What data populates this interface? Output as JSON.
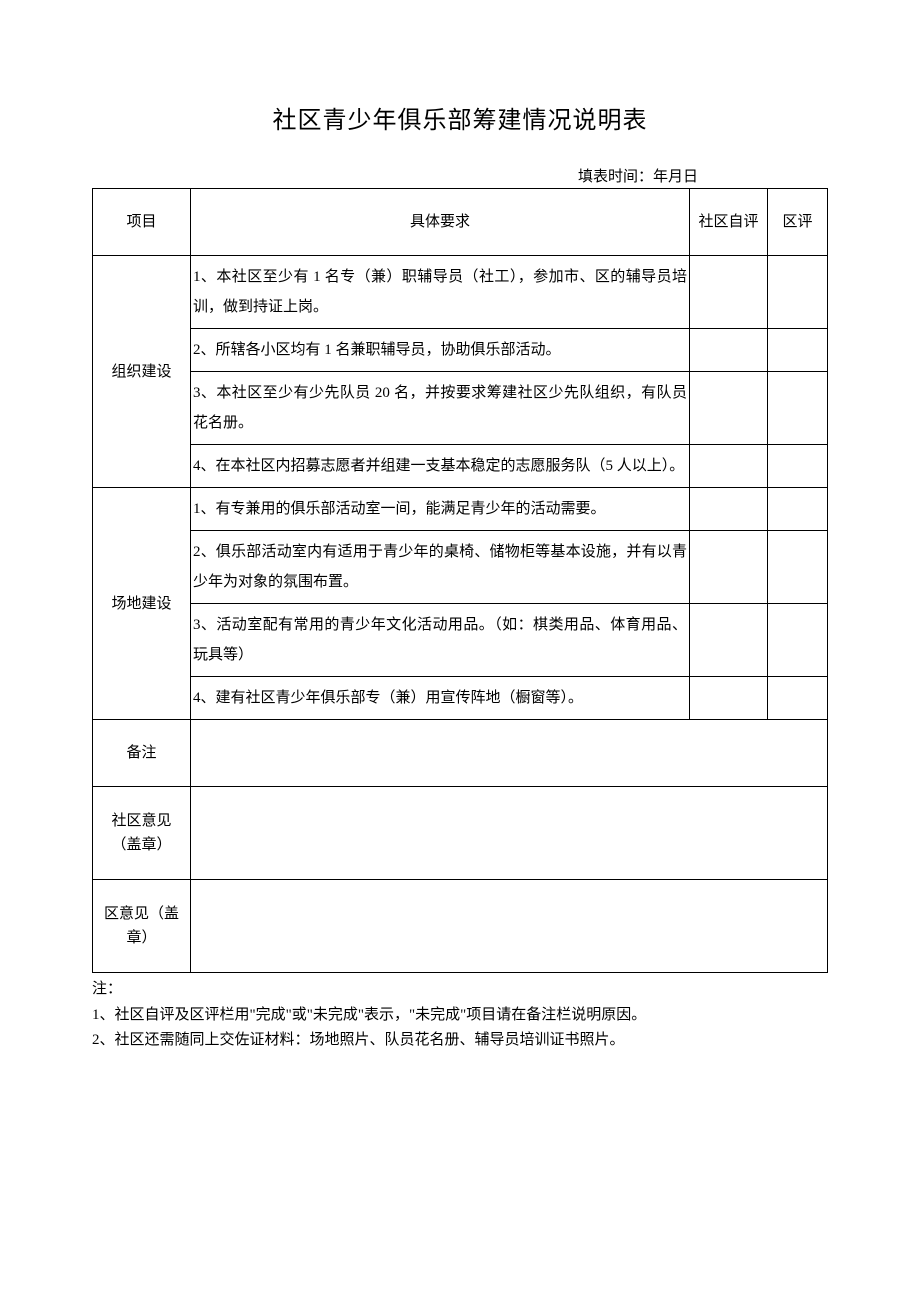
{
  "title": "社区青少年俱乐部筹建情况说明表",
  "fill_time": "填表时间：年月日",
  "headers": {
    "project": "项目",
    "requirement": "具体要求",
    "self_eval": "社区自评",
    "district_eval": "区评"
  },
  "sections": {
    "org": {
      "label": "组织建设",
      "items": [
        "1、本社区至少有 1 名专（兼）职辅导员（社工），参加市、区的辅导员培训，做到持证上岗。",
        "2、所辖各小区均有 1 名兼职辅导员，协助俱乐部活动。",
        "3、本社区至少有少先队员 20 名，并按要求筹建社区少先队组织，有队员花名册。",
        "4、在本社区内招募志愿者并组建一支基本稳定的志愿服务队（5 人以上）。"
      ]
    },
    "venue": {
      "label": "场地建设",
      "items": [
        "1、有专兼用的俱乐部活动室一间，能满足青少年的活动需要。",
        "2、俱乐部活动室内有适用于青少年的桌椅、储物柜等基本设施，并有以青少年为对象的氛围布置。",
        "3、活动室配有常用的青少年文化活动用品。（如：棋类用品、体育用品、玩具等）",
        "4、建有社区青少年俱乐部专（兼）用宣传阵地（橱窗等）。"
      ]
    }
  },
  "remark_label": "备注",
  "community_opinion_label": "社区意见（盖章）",
  "district_opinion_label": "区意见（盖章）",
  "notes": {
    "header": "注：",
    "lines": [
      "1、社区自评及区评栏用\"完成\"或\"未完成\"表示，\"未完成\"项目请在备注栏说明原因。",
      "2、社区还需随同上交佐证材料：场地照片、队员花名册、辅导员培训证书照片。"
    ]
  },
  "style": {
    "font_family": "SimSun",
    "text_color": "#000000",
    "border_color": "#000000",
    "background_color": "#ffffff",
    "title_fontsize": 24,
    "body_fontsize": 15,
    "line_height": 2.0,
    "col_widths": {
      "project": 98,
      "self_eval": 78,
      "district_eval": 60
    }
  }
}
